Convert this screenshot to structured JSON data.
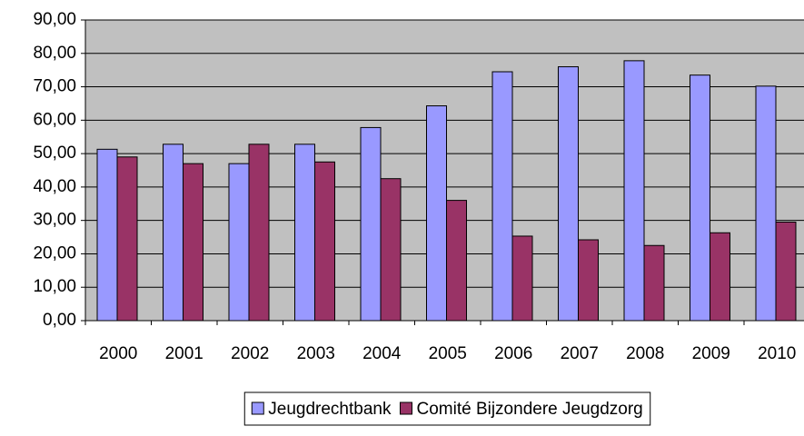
{
  "chart_data": {
    "type": "bar",
    "categories": [
      "2000",
      "2001",
      "2002",
      "2003",
      "2004",
      "2005",
      "2006",
      "2007",
      "2008",
      "2009",
      "2010"
    ],
    "series": [
      {
        "name": "Jeugdrechtbank",
        "color": "#9999ff",
        "values": [
          51.3,
          52.8,
          47.0,
          52.8,
          57.8,
          64.3,
          74.5,
          76.0,
          77.8,
          73.5,
          70.2
        ]
      },
      {
        "name": "Comité Bijzondere Jeugdzorg",
        "color": "#993366",
        "values": [
          49.0,
          47.0,
          52.8,
          47.5,
          42.5,
          36.0,
          25.3,
          24.2,
          22.5,
          26.3,
          29.5
        ]
      }
    ],
    "ylim": [
      0,
      90
    ],
    "yticks": [
      {
        "value": 0,
        "label": "0,00"
      },
      {
        "value": 10,
        "label": "10,00"
      },
      {
        "value": 20,
        "label": "20,00"
      },
      {
        "value": 30,
        "label": "30,00"
      },
      {
        "value": 40,
        "label": "40,00"
      },
      {
        "value": 50,
        "label": "50,00"
      },
      {
        "value": 60,
        "label": "60,00"
      },
      {
        "value": 70,
        "label": "70,00"
      },
      {
        "value": 80,
        "label": "80,00"
      },
      {
        "value": 90,
        "label": "90,00"
      }
    ],
    "grid": true,
    "legend": "bottom"
  }
}
